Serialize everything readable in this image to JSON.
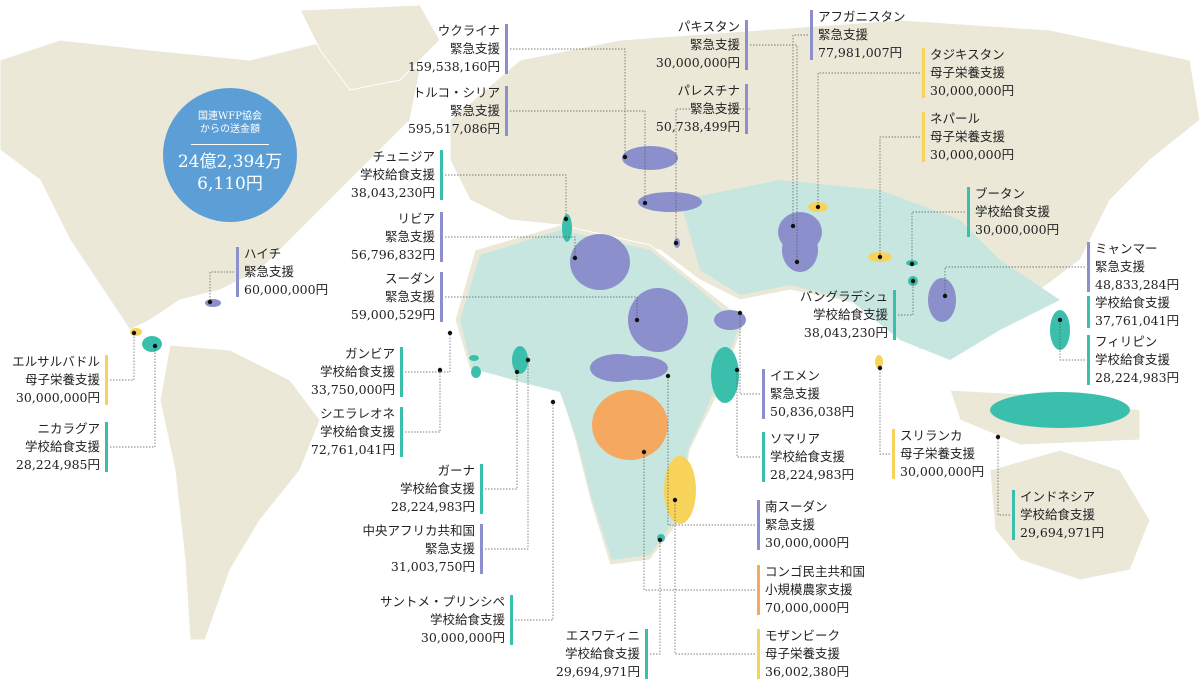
{
  "header": {
    "label": [
      "国連WFP協会",
      "からの送金額"
    ],
    "total": [
      "24億2,394万",
      "6,110円"
    ]
  },
  "callouts": [
    {
      "country": "ウクライナ",
      "color": "#8b8fcb",
      "programs": [
        {
          "name": "緊急支援",
          "amount": "159,538,160円"
        }
      ]
    },
    {
      "country": "トルコ・シリア",
      "color": "#8b8fcb",
      "programs": [
        {
          "name": "緊急支援",
          "amount": "595,517,086円"
        }
      ]
    },
    {
      "country": "チュニジア",
      "color": "#3bbfad",
      "programs": [
        {
          "name": "学校給食支援",
          "amount": "38,043,230円"
        }
      ]
    },
    {
      "country": "リビア",
      "color": "#8b8fcb",
      "programs": [
        {
          "name": "緊急支援",
          "amount": "56,796,832円"
        }
      ]
    },
    {
      "country": "スーダン",
      "color": "#8b8fcb",
      "programs": [
        {
          "name": "緊急支援",
          "amount": "59,000,529円"
        }
      ]
    },
    {
      "country": "ハイチ",
      "color": "#8b8fcb",
      "programs": [
        {
          "name": "緊急支援",
          "amount": "60,000,000円"
        }
      ]
    },
    {
      "country": "ガンビア",
      "color": "#3bbfad",
      "programs": [
        {
          "name": "学校給食支援",
          "amount": "33,750,000円"
        }
      ]
    },
    {
      "country": "シエラレオネ",
      "color": "#3bbfad",
      "programs": [
        {
          "name": "学校給食支援",
          "amount": "72,761,041円"
        }
      ]
    },
    {
      "country": "ガーナ",
      "color": "#3bbfad",
      "programs": [
        {
          "name": "学校給食支援",
          "amount": "28,224,983円"
        }
      ]
    },
    {
      "country": "中央アフリカ共和国",
      "color": "#8b8fcb",
      "programs": [
        {
          "name": "緊急支援",
          "amount": "31,003,750円"
        }
      ]
    },
    {
      "country": "サントメ・プリンシペ",
      "color": "#3bbfad",
      "programs": [
        {
          "name": "学校給食支援",
          "amount": "30,000,000円"
        }
      ]
    },
    {
      "country": "エルサルバドル",
      "color": "#f7d35a",
      "programs": [
        {
          "name": "母子栄養支援",
          "amount": "30,000,000円"
        }
      ]
    },
    {
      "country": "ニカラグア",
      "color": "#3bbfad",
      "programs": [
        {
          "name": "学校給食支援",
          "amount": "28,224,985円"
        }
      ]
    },
    {
      "country": "エスワティニ",
      "color": "#3bbfad",
      "programs": [
        {
          "name": "学校給食支援",
          "amount": "29,694,971円"
        }
      ]
    },
    {
      "country": "パキスタン",
      "color": "#8b8fcb",
      "programs": [
        {
          "name": "緊急支援",
          "amount": "30,000,000円"
        }
      ]
    },
    {
      "country": "パレスチナ",
      "color": "#8b8fcb",
      "programs": [
        {
          "name": "緊急支援",
          "amount": "50,738,499円"
        }
      ]
    },
    {
      "country": "アフガニスタン",
      "color": "#8b8fcb",
      "programs": [
        {
          "name": "緊急支援",
          "amount": "77,981,007円"
        }
      ]
    },
    {
      "country": "タジキスタン",
      "color": "#f7d35a",
      "programs": [
        {
          "name": "母子栄養支援",
          "amount": "30,000,000円"
        }
      ]
    },
    {
      "country": "ネパール",
      "color": "#f7d35a",
      "programs": [
        {
          "name": "母子栄養支援",
          "amount": "30,000,000円"
        }
      ]
    },
    {
      "country": "ブータン",
      "color": "#3bbfad",
      "programs": [
        {
          "name": "学校給食支援",
          "amount": "30,000,000円"
        }
      ]
    },
    {
      "country": "ミャンマー",
      "color": "#8b8fcb",
      "programs": [
        {
          "name": "緊急支援",
          "amount": "48,833,284円",
          "color": "#8b8fcb"
        },
        {
          "name": "学校給食支援",
          "amount": "37,761,041円",
          "color": "#3bbfad"
        }
      ]
    },
    {
      "country": "バングラデシュ",
      "color": "#3bbfad",
      "programs": [
        {
          "name": "学校給食支援",
          "amount": "38,043,230円"
        }
      ]
    },
    {
      "country": "フィリピン",
      "color": "#3bbfad",
      "programs": [
        {
          "name": "学校給食支援",
          "amount": "28,224,983円"
        }
      ]
    },
    {
      "country": "イエメン",
      "color": "#8b8fcb",
      "programs": [
        {
          "name": "緊急支援",
          "amount": "50,836,038円"
        }
      ]
    },
    {
      "country": "ソマリア",
      "color": "#3bbfad",
      "programs": [
        {
          "name": "学校給食支援",
          "amount": "28,224,983円"
        }
      ]
    },
    {
      "country": "スリランカ",
      "color": "#f7d35a",
      "programs": [
        {
          "name": "母子栄養支援",
          "amount": "30,000,000円"
        }
      ]
    },
    {
      "country": "インドネシア",
      "color": "#3bbfad",
      "programs": [
        {
          "name": "学校給食支援",
          "amount": "29,694,971円"
        }
      ]
    },
    {
      "country": "南スーダン",
      "color": "#8b8fcb",
      "programs": [
        {
          "name": "緊急支援",
          "amount": "30,000,000円"
        }
      ]
    },
    {
      "country": "コンゴ民主共和国",
      "color": "#f5a85f",
      "programs": [
        {
          "name": "小規模農家支援",
          "amount": "70,000,000円"
        }
      ]
    },
    {
      "country": "モザンビーク",
      "color": "#f7d35a",
      "programs": [
        {
          "name": "母子栄養支援",
          "amount": "36,002,380円"
        }
      ]
    }
  ]
}
